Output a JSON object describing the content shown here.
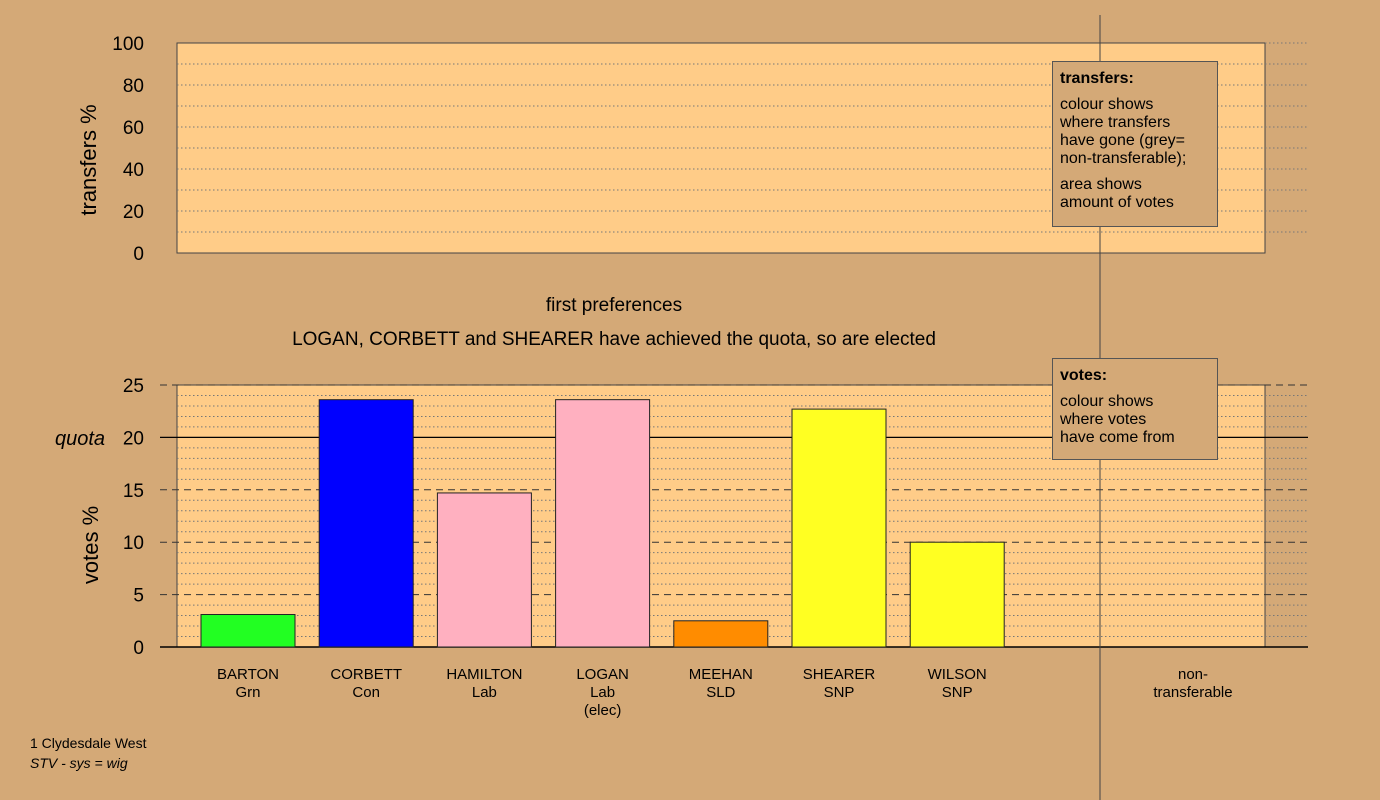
{
  "colors": {
    "background": "#D4A977",
    "panel": "#FFCC88",
    "quota_line": "#000000"
  },
  "chart_data": [
    {
      "type": "bar",
      "ylabel": "transfers %",
      "ylim": [
        0,
        100
      ],
      "yticks": [
        0,
        20,
        40,
        60,
        80,
        100
      ],
      "values": []
    },
    {
      "type": "bar",
      "title": "first preferences",
      "subtitle": "LOGAN, CORBETT and SHEARER have achieved the quota, so are elected",
      "ylabel": "votes %",
      "ylim": [
        0,
        25
      ],
      "yticks": [
        0,
        5,
        10,
        15,
        20,
        25
      ],
      "quota": 20,
      "quota_label": "quota",
      "categories": [
        "BARTON",
        "CORBETT",
        "HAMILTON",
        "LOGAN",
        "MEEHAN",
        "SHEARER",
        "WILSON"
      ],
      "parties": [
        "Grn",
        "Con",
        "Lab",
        "Lab",
        "SLD",
        "SNP",
        "SNP"
      ],
      "notes": [
        "",
        "",
        "",
        "(elec)",
        "",
        "",
        ""
      ],
      "values": [
        3.1,
        23.6,
        14.7,
        23.6,
        2.5,
        22.7,
        10.0
      ],
      "bar_colors": [
        "#22FF22",
        "#0000FF",
        "#FFB0C0",
        "#FFB0C0",
        "#FF8C00",
        "#FFFF22",
        "#FFFF22"
      ],
      "nontransferable_label_line1": "non-",
      "nontransferable_label_line2": "transferable"
    }
  ],
  "legends": {
    "transfers": {
      "title": "transfers:",
      "lines": [
        "colour shows",
        "where transfers",
        "have gone (grey=",
        "non-transferable);"
      ],
      "lines2": [
        "area shows",
        "amount of votes"
      ]
    },
    "votes": {
      "title": "votes:",
      "lines": [
        "colour shows",
        "where votes",
        "have come from"
      ]
    }
  },
  "footer": {
    "constituency": "1 Clydesdale West",
    "system": "STV - sys = wig"
  }
}
